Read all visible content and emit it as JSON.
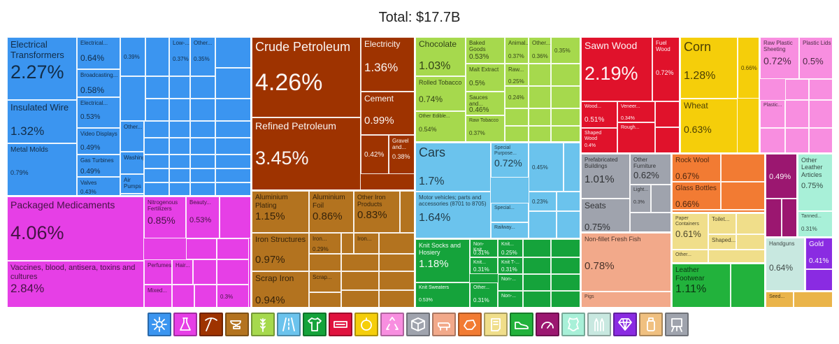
{
  "title": "Total: $17.7B",
  "chart_data": {
    "type": "treemap",
    "title": "Total: $17.7B",
    "unit": "%",
    "sectors": [
      {
        "key": "machines",
        "name": "Machines",
        "color": "#3b95f0",
        "icon": "gear-icon",
        "items": [
          [
            "Electrical Transformers",
            2.27
          ],
          [
            "Insulated Wire",
            1.32
          ],
          [
            "Metal Molds",
            0.79
          ],
          [
            "Electrical...",
            0.64
          ],
          [
            "Broadcasting...",
            0.58
          ],
          [
            "Electrical...",
            0.53
          ],
          [
            "Video Displays",
            0.49
          ],
          [
            "Gas Turbines",
            0.49
          ],
          [
            "Valves",
            0.43
          ],
          [
            "",
            0.39
          ],
          [
            "Low-...",
            0.37
          ],
          [
            "Other...",
            0.35
          ],
          [
            "Other...",
            ""
          ],
          [
            "Washing...",
            ""
          ],
          [
            "Air Pumps",
            ""
          ],
          [
            "Electric...",
            ""
          ]
        ]
      },
      {
        "key": "chemicals",
        "name": "Chemical Products",
        "color": "#e63fe6",
        "icon": "flask-icon",
        "items": [
          [
            "Packaged Medicaments",
            4.06
          ],
          [
            "Vaccines, blood, antisera, toxins and cultures",
            2.84
          ],
          [
            "Nitrogenous Fertilizers",
            0.85
          ],
          [
            "Beauty...",
            0.53
          ],
          [
            "Perfumes",
            ""
          ],
          [
            "Hair...",
            ""
          ],
          [
            "Mixed...",
            ""
          ],
          [
            "",
            0.3
          ]
        ]
      },
      {
        "key": "minerals",
        "name": "Mineral Products",
        "color": "#9e3300",
        "icon": "pickaxe-icon",
        "items": [
          [
            "Crude Petroleum",
            4.26
          ],
          [
            "Refined Petroleum",
            3.45
          ],
          [
            "Electricity",
            1.36
          ],
          [
            "Cement",
            0.99
          ],
          [
            "",
            0.42
          ],
          [
            "Gravel and...",
            0.38
          ]
        ]
      },
      {
        "key": "metals",
        "name": "Metals",
        "color": "#b3731f",
        "icon": "anvil-icon",
        "items": [
          [
            "Aluminium Plating",
            1.15
          ],
          [
            "Aluminium Foil",
            0.86
          ],
          [
            "Other Iron Products",
            0.83
          ],
          [
            "Iron Structures",
            0.97
          ],
          [
            "Scrap Iron",
            0.94
          ],
          [
            "Iron...",
            0.29
          ],
          [
            "Iron...",
            ""
          ],
          [
            "Scrap...",
            ""
          ]
        ]
      },
      {
        "key": "foodstuffs",
        "name": "Foodstuffs",
        "color": "#a6d94d",
        "icon": "wheat-icon",
        "items": [
          [
            "Chocolate",
            1.03
          ],
          [
            "Baked Goods",
            0.53
          ],
          [
            "Animal...",
            0.37
          ],
          [
            "Other...",
            0.36
          ],
          [
            "",
            0.35
          ],
          [
            "Malt Extract",
            0.5
          ],
          [
            "Raw...",
            0.25
          ],
          [
            "Rolled Tobacco",
            0.74
          ],
          [
            "Sauces and...",
            0.46
          ],
          [
            "",
            0.24
          ],
          [
            "Other Edible...",
            0.54
          ],
          [
            "Raw Tobacco",
            0.37
          ]
        ]
      },
      {
        "key": "transportation",
        "name": "Transportation",
        "color": "#6bc3ed",
        "icon": "road-icon",
        "items": [
          [
            "Cars",
            1.7
          ],
          [
            "Special Purpose...",
            0.72
          ],
          [
            "",
            0.45
          ],
          [
            "Motor vehicles; parts and accessories (8701 to 8705)",
            1.64
          ],
          [
            "",
            0.23
          ],
          [
            "Special...",
            ""
          ],
          [
            "Railway...",
            ""
          ]
        ]
      },
      {
        "key": "textiles",
        "name": "Textiles",
        "color": "#15a33b",
        "icon": "shirt-icon",
        "items": [
          [
            "Knit Socks and Hosiery",
            1.18
          ],
          [
            "Non-Knit...",
            0.31
          ],
          [
            "Knit...",
            0.25
          ],
          [
            "Knit...",
            0.31
          ],
          [
            "Knit T-...",
            0.31
          ],
          [
            "Knit Sweaters",
            0.53
          ],
          [
            "Other...",
            0.31
          ],
          [
            "Non-...",
            ""
          ],
          [
            "Non-...",
            ""
          ]
        ]
      },
      {
        "key": "vegetables",
        "name": "Vegetable Products",
        "color": "#f5ce0a",
        "icon": "fruit-icon",
        "items": [
          [
            "Corn",
            1.28
          ],
          [
            "",
            0.66
          ],
          [
            "Wheat",
            0.63
          ]
        ]
      },
      {
        "key": "wood",
        "name": "Wood Products",
        "color": "#e0122b",
        "icon": "box-icon",
        "items": [
          [
            "Sawn Wood",
            2.19
          ],
          [
            "Fuel Wood",
            0.72
          ],
          [
            "Wood...",
            0.51
          ],
          [
            "Veneer...",
            0.34
          ],
          [
            "Shaped Wood",
            0.4
          ],
          [
            "Rough...",
            ""
          ]
        ]
      },
      {
        "key": "plastics",
        "name": "Plastics and Rubbers",
        "color": "#f88ee0",
        "icon": "recycle-icon",
        "items": [
          [
            "Raw Plastic Sheeting",
            0.72
          ],
          [
            "Plastic Lids",
            0.5
          ],
          [
            "Plastic...",
            ""
          ]
        ]
      },
      {
        "key": "paper",
        "name": "Paper Goods",
        "color": "#f0de8a",
        "icon": "scroll-icon",
        "items": [
          [
            "Paper Containers",
            0.61
          ],
          [
            "Toilet...",
            ""
          ],
          [
            "Shaped...",
            ""
          ],
          [
            "Other...",
            ""
          ]
        ]
      },
      {
        "key": "stone",
        "name": "Stone and Glass",
        "color": "#f27b33",
        "icon": "stone-icon",
        "items": [
          [
            "Rock Wool",
            0.67
          ],
          [
            "Glass Bottles",
            0.66
          ]
        ]
      },
      {
        "key": "instruments",
        "name": "Instruments",
        "color": "#9b1770",
        "icon": "gauge-icon",
        "items": [
          [
            "",
            0.49
          ]
        ]
      },
      {
        "key": "animal_hides",
        "name": "Animal Hides",
        "color": "#a8f0d8",
        "icon": "hide-icon",
        "items": [
          [
            "Other Leather Articles",
            0.75
          ],
          [
            "Tanned...",
            0.31
          ]
        ]
      },
      {
        "key": "furniture",
        "name": "Miscellaneous / Furniture",
        "color": "#9fa3ad",
        "icon": "crate-icon",
        "items": [
          [
            "Prefabricated Buildings",
            1.01
          ],
          [
            "Other Furniture",
            0.62
          ],
          [
            "Light...",
            0.3
          ],
          [
            "Seats",
            0.75
          ]
        ]
      },
      {
        "key": "animal_products",
        "name": "Animal Products",
        "color": "#f2a98a",
        "icon": "cow-icon",
        "items": [
          [
            "Non-fillet Fresh Fish",
            0.78
          ],
          [
            "Pigs",
            ""
          ]
        ]
      },
      {
        "key": "footwear",
        "name": "Footwear and Headwear",
        "color": "#22b23c",
        "icon": "shoe-icon",
        "items": [
          [
            "Leather Footwear",
            1.11
          ]
        ]
      },
      {
        "key": "weapons",
        "name": "Weapons",
        "color": "#c8e8e0",
        "icon": "bullets-icon",
        "items": [
          [
            "Handguns",
            0.64
          ]
        ]
      },
      {
        "key": "precious",
        "name": "Precious Metals",
        "color": "#8a2be2",
        "icon": "diamond-icon",
        "items": [
          [
            "Gold",
            0.41
          ]
        ]
      },
      {
        "key": "arts",
        "name": "Arts and Antiques",
        "color": "#eab44a",
        "icon": "easel-icon",
        "items": [
          [
            "Seed...",
            ""
          ]
        ]
      }
    ]
  },
  "legend": [
    {
      "name": "Machines",
      "color": "#3b95f0",
      "icon": "gear-icon"
    },
    {
      "name": "Chemical Products",
      "color": "#e63fe6",
      "icon": "flask-icon"
    },
    {
      "name": "Mineral Products",
      "color": "#9e3300",
      "icon": "pickaxe-icon"
    },
    {
      "name": "Metals",
      "color": "#b3731f",
      "icon": "anvil-icon"
    },
    {
      "name": "Foodstuffs",
      "color": "#a6d94d",
      "icon": "wheat-icon"
    },
    {
      "name": "Transportation",
      "color": "#6bc3ed",
      "icon": "road-icon"
    },
    {
      "name": "Textiles",
      "color": "#15a33b",
      "icon": "shirt-icon"
    },
    {
      "name": "Electronics",
      "color": "#e0123e",
      "icon": "electronics-icon"
    },
    {
      "name": "Vegetable Products",
      "color": "#f5ce0a",
      "icon": "fruit-icon"
    },
    {
      "name": "Plastics and Rubbers",
      "color": "#f88ee0",
      "icon": "recycle-icon"
    },
    {
      "name": "Miscellaneous",
      "color": "#9fa3ad",
      "icon": "box-icon"
    },
    {
      "name": "Animal Products",
      "color": "#f2a98a",
      "icon": "cow-icon"
    },
    {
      "name": "Stone and Glass",
      "color": "#f27b33",
      "icon": "stone-icon"
    },
    {
      "name": "Paper Goods",
      "color": "#f0de8a",
      "icon": "scroll-icon"
    },
    {
      "name": "Footwear and Headwear",
      "color": "#22b23c",
      "icon": "shoe-icon"
    },
    {
      "name": "Instruments",
      "color": "#9b1770",
      "icon": "gauge-icon"
    },
    {
      "name": "Animal Hides",
      "color": "#a8f0d8",
      "icon": "hide-icon"
    },
    {
      "name": "Weapons",
      "color": "#c8e8e0",
      "icon": "bullets-icon"
    },
    {
      "name": "Precious Metals",
      "color": "#8a2be2",
      "icon": "diamond-icon"
    },
    {
      "name": "Animal and Vegetable Bi-Products",
      "color": "#f0c080",
      "icon": "jar-icon"
    },
    {
      "name": "Arts and Antiques",
      "color": "#9fa3ad",
      "icon": "easel-icon"
    }
  ]
}
